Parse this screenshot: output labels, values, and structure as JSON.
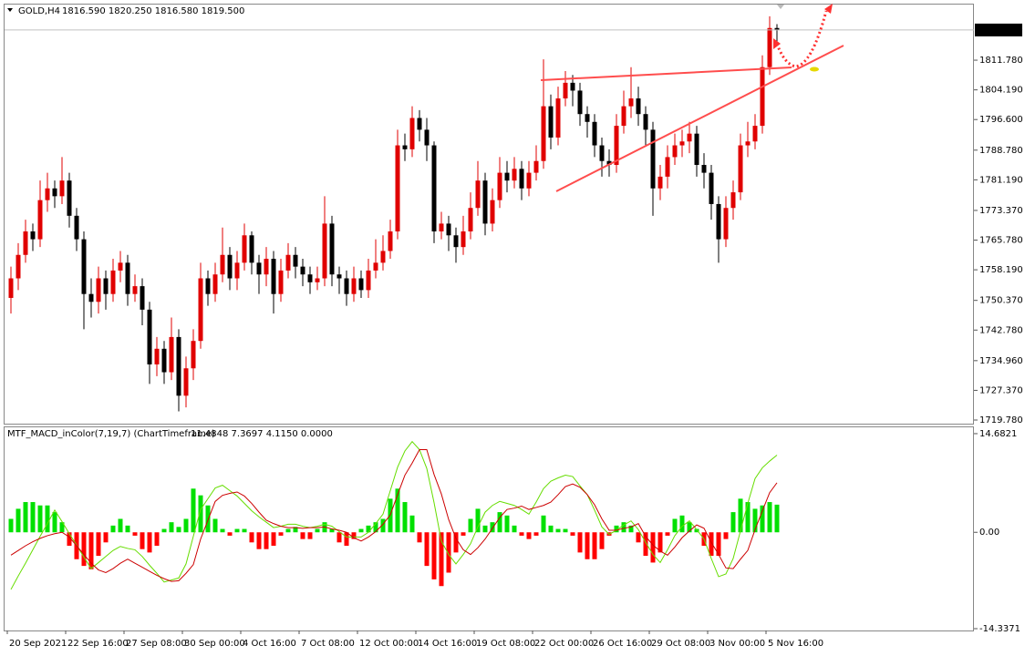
{
  "chart_data": [
    {
      "type": "candlestick",
      "title": "GOLD,H4",
      "quote": "1816.590 1820.250 1816.580 1819.500",
      "categories": [
        "20 Sep 2021",
        null,
        null,
        null,
        null,
        null,
        null,
        null,
        "22 Sep 16:00",
        null,
        null,
        null,
        null,
        null,
        null,
        null,
        "27 Sep 08:00",
        null,
        null,
        null,
        null,
        null,
        null,
        null,
        "30 Sep 00:00",
        null,
        null,
        null,
        null,
        null,
        null,
        null,
        "4 Oct 16:00",
        null,
        null,
        null,
        null,
        null,
        null,
        null,
        "7 Oct 08:00",
        null,
        null,
        null,
        null,
        null,
        null,
        null,
        "12 Oct 00:00",
        null,
        null,
        null,
        null,
        null,
        null,
        null,
        "14 Oct 16:00",
        null,
        null,
        null,
        null,
        null,
        null,
        null,
        "19 Oct 08:00",
        null,
        null,
        null,
        null,
        null,
        null,
        null,
        "22 Oct 00:00",
        null,
        null,
        null,
        null,
        null,
        null,
        null,
        "26 Oct 16:00",
        null,
        null,
        null,
        null,
        null,
        null,
        null,
        "29 Oct 08:00",
        null,
        null,
        null,
        null,
        null,
        null,
        null,
        "3 Nov 00:00",
        null,
        null,
        null,
        null,
        null,
        null,
        null,
        "5 Nov 16:00",
        null
      ],
      "open": [
        1751,
        1756,
        1762,
        1768,
        1766,
        1776,
        1779,
        1777,
        1781,
        1772,
        1766,
        1752,
        1750,
        1756,
        1752,
        1758,
        1760,
        1752,
        1754,
        1748,
        1734,
        1738,
        1732,
        1741,
        1726,
        1733,
        1740,
        1756,
        1752,
        1757,
        1762,
        1756,
        1760,
        1767,
        1760,
        1757,
        1761,
        1752,
        1758,
        1762,
        1759,
        1757,
        1755,
        1756,
        1770,
        1757,
        1756,
        1752,
        1756,
        1753,
        1758,
        1760,
        1763,
        1768,
        1790,
        1789,
        1797,
        1794,
        1790,
        1768,
        1770,
        1767,
        1764,
        1768,
        1774,
        1781,
        1770,
        1776,
        1783,
        1781,
        1784,
        1779,
        1783,
        1786,
        1800,
        1792,
        1802,
        1806,
        1804,
        1798,
        1796,
        1790,
        1786,
        1785,
        1795,
        1800,
        1802,
        1798,
        1794,
        1779,
        1782,
        1787,
        1790,
        1791,
        1793,
        1785,
        1783,
        1775,
        1766,
        1774,
        1778,
        1790,
        1791,
        1795,
        1810,
        1820
      ],
      "high": [
        1759,
        1765,
        1771,
        1770,
        1781,
        1783,
        1781,
        1787,
        1783,
        1774,
        1768,
        1756,
        1759,
        1758,
        1761,
        1763,
        1762,
        1757,
        1756,
        1750,
        1741,
        1740,
        1746,
        1743,
        1736,
        1743,
        1760,
        1758,
        1760,
        1769,
        1764,
        1763,
        1770,
        1768,
        1762,
        1764,
        1763,
        1761,
        1765,
        1764,
        1761,
        1759,
        1759,
        1777,
        1772,
        1759,
        1758,
        1759,
        1758,
        1761,
        1766,
        1767,
        1771,
        1794,
        1793,
        1800,
        1799,
        1797,
        1791,
        1773,
        1772,
        1769,
        1772,
        1778,
        1786,
        1783,
        1779,
        1787,
        1786,
        1787,
        1786,
        1786,
        1790,
        1812,
        1803,
        1805,
        1809,
        1808,
        1806,
        1800,
        1798,
        1792,
        1789,
        1798,
        1804,
        1810,
        1805,
        1800,
        1796,
        1785,
        1790,
        1793,
        1794,
        1796,
        1795,
        1788,
        1785,
        1777,
        1777,
        1781,
        1793,
        1796,
        1798,
        1813,
        1823,
        1821
      ],
      "low": [
        1747,
        1753,
        1760,
        1763,
        1764,
        1773,
        1774,
        1775,
        1769,
        1763,
        1743,
        1746,
        1747,
        1748,
        1750,
        1755,
        1749,
        1750,
        1744,
        1729,
        1731,
        1729,
        1730,
        1722,
        1723,
        1730,
        1738,
        1749,
        1750,
        1755,
        1753,
        1753,
        1758,
        1757,
        1752,
        1754,
        1747,
        1750,
        1756,
        1756,
        1754,
        1752,
        1753,
        1754,
        1754,
        1752,
        1749,
        1750,
        1751,
        1751,
        1756,
        1758,
        1761,
        1766,
        1786,
        1787,
        1791,
        1786,
        1765,
        1766,
        1763,
        1760,
        1762,
        1766,
        1772,
        1767,
        1768,
        1774,
        1778,
        1779,
        1776,
        1777,
        1781,
        1784,
        1789,
        1790,
        1800,
        1800,
        1795,
        1792,
        1787,
        1782,
        1782,
        1783,
        1793,
        1797,
        1795,
        1790,
        1772,
        1776,
        1779,
        1785,
        1787,
        1788,
        1782,
        1779,
        1771,
        1760,
        1764,
        1771,
        1776,
        1787,
        1789,
        1793,
        1808,
        1816
      ],
      "close": [
        1756,
        1762,
        1768,
        1766,
        1776,
        1779,
        1777,
        1781,
        1772,
        1766,
        1752,
        1750,
        1756,
        1752,
        1758,
        1760,
        1752,
        1754,
        1748,
        1734,
        1738,
        1732,
        1741,
        1726,
        1733,
        1740,
        1756,
        1752,
        1757,
        1762,
        1756,
        1760,
        1767,
        1760,
        1757,
        1761,
        1752,
        1758,
        1762,
        1759,
        1757,
        1755,
        1756,
        1770,
        1757,
        1756,
        1752,
        1756,
        1753,
        1758,
        1760,
        1763,
        1768,
        1790,
        1789,
        1797,
        1794,
        1790,
        1768,
        1770,
        1767,
        1764,
        1768,
        1774,
        1781,
        1770,
        1776,
        1783,
        1781,
        1784,
        1779,
        1783,
        1786,
        1800,
        1792,
        1802,
        1806,
        1804,
        1798,
        1796,
        1790,
        1786,
        1785,
        1795,
        1800,
        1802,
        1798,
        1794,
        1779,
        1782,
        1787,
        1790,
        1791,
        1793,
        1785,
        1783,
        1775,
        1766,
        1774,
        1778,
        1790,
        1791,
        1795,
        1810,
        1820,
        1819.5
      ],
      "up_color": "#e00000",
      "down_color": "#000000",
      "ylim": [
        1718.85,
        1826
      ],
      "yticks": [
        {
          "value": 1811.78,
          "label": "1811.780"
        },
        {
          "value": 1804.19,
          "label": "1804.190"
        },
        {
          "value": 1796.6,
          "label": "1796.600"
        },
        {
          "value": 1788.78,
          "label": "1788.780"
        },
        {
          "value": 1781.19,
          "label": "1781.190"
        },
        {
          "value": 1773.37,
          "label": "1773.370"
        },
        {
          "value": 1765.78,
          "label": "1765.780"
        },
        {
          "value": 1758.19,
          "label": "1758.190"
        },
        {
          "value": 1750.37,
          "label": "1750.370"
        },
        {
          "value": 1742.78,
          "label": "1742.780"
        },
        {
          "value": 1734.96,
          "label": "1734.960"
        },
        {
          "value": 1727.37,
          "label": "1727.370"
        },
        {
          "value": 1719.78,
          "label": "1719.780"
        }
      ],
      "current_price": {
        "value": 1819.5,
        "label": "1819.500"
      }
    },
    {
      "type": "macd",
      "title": "MTF_MACD_inColor(7,19,7) (ChartTimeframe)",
      "quote": "11.4848 7.3697 4.1150 0.0000",
      "histogram": {
        "up_color": "#00e000",
        "down_color": "#ff0000",
        "values": [
          2,
          3.5,
          4.5,
          4.5,
          4,
          4,
          3,
          1.5,
          -2,
          -4,
          -5,
          -5.5,
          -3.5,
          -1.5,
          1,
          2,
          1,
          -0.5,
          -2.5,
          -3,
          -2,
          0.5,
          1.5,
          0.8,
          2,
          6.5,
          5.5,
          4,
          2,
          0.5,
          -0.5,
          0.5,
          0.5,
          -1.5,
          -2.5,
          -2.5,
          -2,
          -0.5,
          0.5,
          0.8,
          -1,
          -1,
          0.5,
          1.5,
          0.5,
          -1.5,
          -2,
          -1,
          0.5,
          1,
          1.5,
          2,
          5,
          6.5,
          4.5,
          2.5,
          -1.5,
          -5,
          -7,
          -8,
          -6,
          -3,
          -0.5,
          2,
          3.5,
          1,
          1.5,
          3,
          2.5,
          1,
          -0.5,
          -1,
          -0.5,
          2.5,
          1,
          0.5,
          0.5,
          -0.5,
          -3,
          -4,
          -4,
          -2.5,
          -0.5,
          1,
          1.5,
          1,
          -1.5,
          -3.5,
          -4.5,
          -3,
          -0.5,
          2,
          2.5,
          1.5,
          0.5,
          -2,
          -3.5,
          -3.5,
          -1,
          3,
          5,
          4.5,
          3.5,
          4,
          4.5,
          4.115
        ]
      },
      "main": {
        "color": "#66dd00",
        "values": [
          -8.5,
          -6.5,
          -4.6,
          -2.6,
          -0.6,
          1.3,
          3.3,
          1.6,
          -0.2,
          -1.9,
          -3.7,
          -5.4,
          -4.5,
          -3.6,
          -2.7,
          -2.1,
          -2.4,
          -2.6,
          -3.6,
          -4.9,
          -6.1,
          -7.4,
          -7.1,
          -6.8,
          -4.7,
          -0.6,
          3.4,
          5,
          6.6,
          7,
          6.2,
          5.4,
          4.3,
          3.2,
          2.3,
          1.5,
          0.7,
          0.9,
          1.2,
          1.2,
          0.9,
          0.7,
          0.9,
          1.2,
          0.9,
          0.1,
          -0.7,
          -0.7,
          -0.7,
          0,
          1.3,
          2.7,
          6.2,
          9.7,
          12.1,
          13.5,
          12.3,
          9.5,
          4.4,
          -1.3,
          -3.3,
          -4.7,
          -3.3,
          -1.7,
          0.8,
          3,
          4,
          4.6,
          4.3,
          4,
          3.4,
          2.7,
          4.5,
          6.5,
          7.6,
          8.1,
          8.5,
          8.3,
          6.9,
          5.6,
          3.3,
          0.8,
          -0.3,
          0.3,
          1.1,
          1.7,
          0.4,
          -1.5,
          -3.3,
          -4.5,
          -2.6,
          -0.5,
          0.9,
          1.7,
          0.4,
          -1,
          -3.9,
          -6.6,
          -6.2,
          -3.9,
          0.2,
          4.3,
          8,
          9.6,
          10.6,
          11.4848
        ]
      },
      "signal": {
        "color": "#cc0000",
        "values": [
          -3.4,
          -2.7,
          -2,
          -1.4,
          -0.9,
          -0.5,
          -0.2,
          0,
          -0.7,
          -2,
          -3.3,
          -4.6,
          -5.6,
          -6,
          -5.4,
          -4.6,
          -4,
          -4.6,
          -5.2,
          -5.8,
          -6.4,
          -6.9,
          -7.3,
          -7.2,
          -6.1,
          -4.8,
          -1,
          1.8,
          4.6,
          5.5,
          5.8,
          6,
          5.4,
          4.3,
          3,
          1.8,
          1.3,
          0.9,
          0.7,
          0.7,
          0.6,
          0.7,
          0.7,
          0.8,
          0.5,
          0.3,
          0,
          -0.8,
          -1.3,
          -0.7,
          0.1,
          1.2,
          2.6,
          5.6,
          8.5,
          10.3,
          12.3,
          12.3,
          8.6,
          5.7,
          1.9,
          -0.9,
          -2.6,
          -3.3,
          -2.3,
          -1,
          0.6,
          2.2,
          3.4,
          3.6,
          3.9,
          3.4,
          3.7,
          4,
          4.5,
          5.6,
          6.8,
          7.2,
          6.7,
          5.6,
          4.1,
          2,
          0.3,
          0.3,
          0.6,
          0.8,
          1.3,
          -0.6,
          -1.9,
          -2.8,
          -3.4,
          -2.2,
          -0.8,
          0.2,
          1.1,
          0.6,
          -1.5,
          -3.3,
          -5.3,
          -5.4,
          -4,
          -2.7,
          0.4,
          3.2,
          5.9,
          7.3697
        ]
      },
      "ylim": [
        -14.61,
        15.76
      ],
      "yticks": [
        14.6821,
        {
          "value": 0,
          "label": "0.00"
        },
        -14.3371
      ]
    }
  ]
}
